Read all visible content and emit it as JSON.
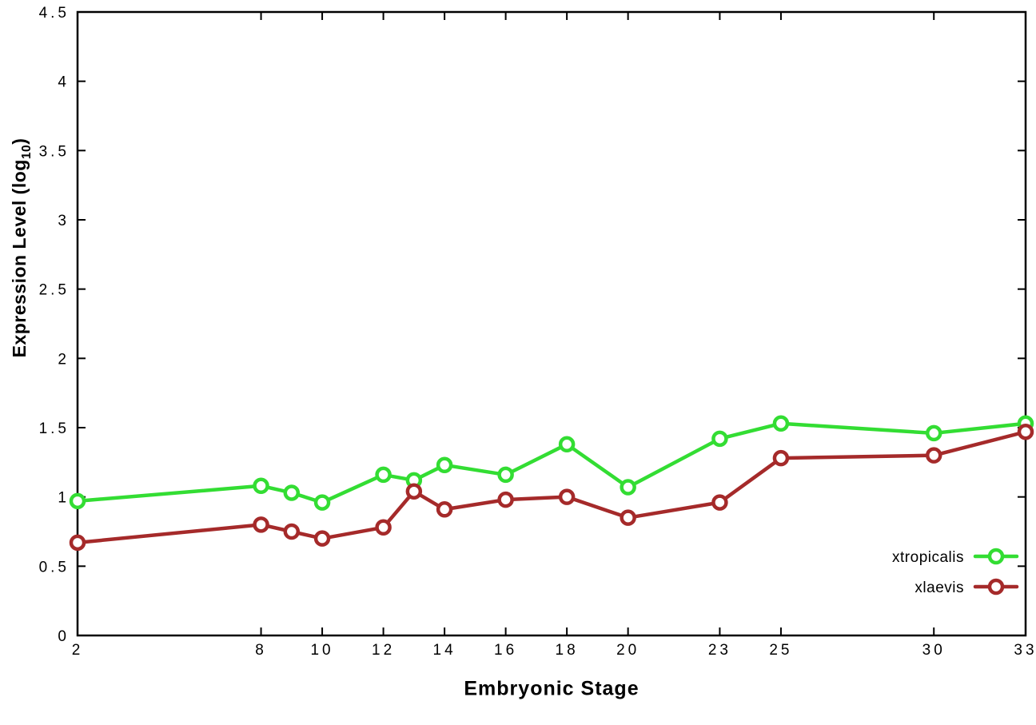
{
  "chart_data": {
    "type": "line",
    "title": "",
    "xlabel": "Embryonic Stage",
    "ylabel": "Expression Level (log10)",
    "ylabel_parts": {
      "main": "Expression Level (log",
      "sub": "10",
      "end": ")"
    },
    "xlim": [
      2,
      33
    ],
    "ylim": [
      0,
      4.5
    ],
    "x_ticks": [
      2,
      8,
      10,
      12,
      14,
      16,
      18,
      20,
      23,
      25,
      30,
      33
    ],
    "y_ticks": [
      0,
      0.5,
      1,
      1.5,
      2,
      2.5,
      3,
      3.5,
      4,
      4.5
    ],
    "grid": false,
    "marker": "open-circle",
    "background": "#ffffff",
    "axis_color": "#000000",
    "x": [
      2,
      8,
      9,
      10,
      12,
      13,
      14,
      16,
      18,
      20,
      23,
      25,
      30,
      33
    ],
    "series": [
      {
        "name": "xtropicalis",
        "color": "#33dd33",
        "values": [
          0.97,
          1.08,
          1.03,
          0.96,
          1.16,
          1.12,
          1.23,
          1.16,
          1.38,
          1.07,
          1.42,
          1.53,
          1.46,
          1.53
        ]
      },
      {
        "name": "xlaevis",
        "color": "#a52a2a",
        "values": [
          0.67,
          0.8,
          0.75,
          0.7,
          0.78,
          1.04,
          0.91,
          0.98,
          1.0,
          0.85,
          0.96,
          1.28,
          1.3,
          1.47
        ]
      }
    ],
    "legend": {
      "position": "inside bottom right",
      "entries": [
        "xtropicalis",
        "xlaevis"
      ]
    }
  }
}
